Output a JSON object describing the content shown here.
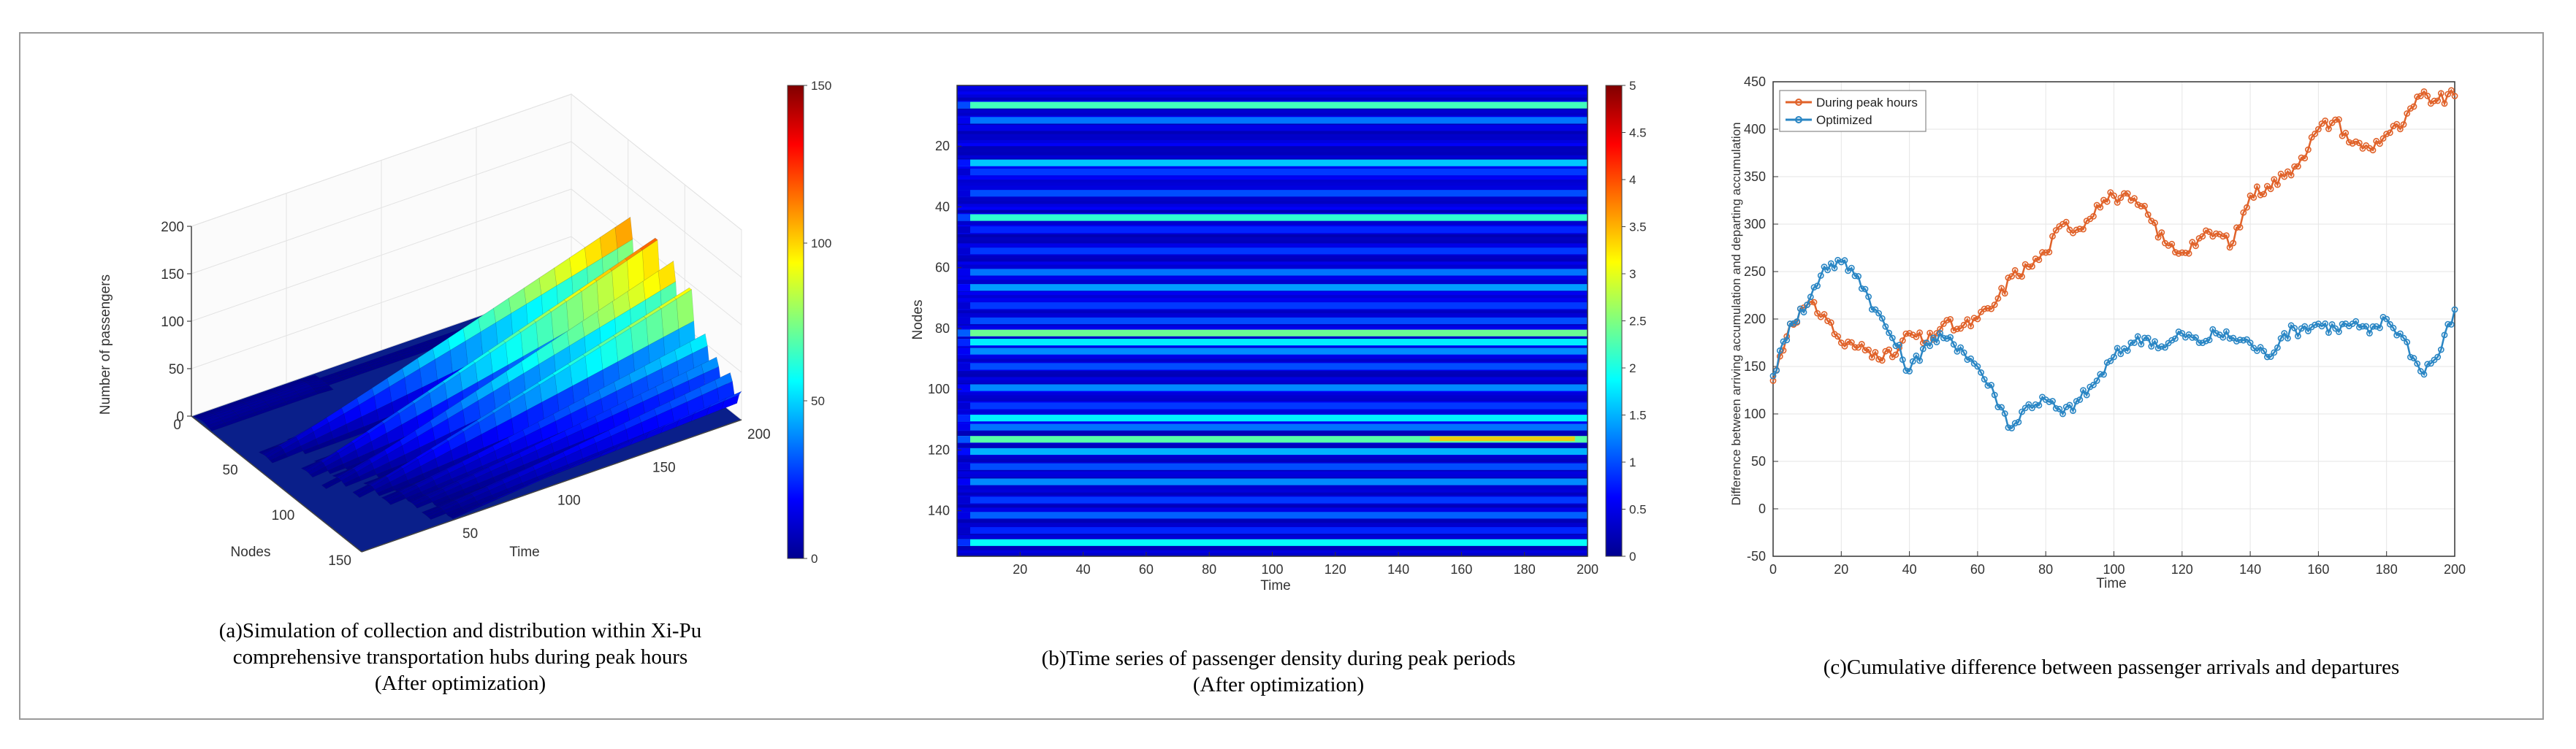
{
  "colors": {
    "peak": "#e0622a",
    "optimized": "#2a86c4",
    "axis": "#333333",
    "grid": "#e6e6e6"
  },
  "captions": {
    "a": [
      "(a)Simulation of collection and distribution within Xi-Pu",
      "comprehensive transportation hubs during peak hours",
      "(After optimization)"
    ],
    "b": [
      "(b)Time series of passenger density during peak periods",
      "(After optimization)"
    ],
    "c": [
      "(c)Cumulative difference between passenger arrivals and departures"
    ]
  },
  "chart_data": [
    {
      "id": "a",
      "type": "surface",
      "zlabel": "Number of passengers",
      "xlabel": "Nodes",
      "ylabel": "Time",
      "zticks": [
        "0",
        "50",
        "100",
        "150",
        "200"
      ],
      "xticks": [
        "0",
        "50",
        "100",
        "150"
      ],
      "yticks": [
        "50",
        "100",
        "150",
        "200"
      ],
      "xlim": [
        0,
        150
      ],
      "ylim": [
        0,
        200
      ],
      "zlim": [
        0,
        200
      ],
      "colorbar": {
        "range": [
          0,
          150
        ],
        "ticks": [
          "0",
          "50",
          "100",
          "150"
        ]
      },
      "ridges": [
        {
          "node": 52,
          "peak": 120
        },
        {
          "node": 75,
          "peak": 125
        },
        {
          "node": 90,
          "peak": 110
        },
        {
          "node": 105,
          "peak": 100
        },
        {
          "node": 118,
          "peak": 60
        },
        {
          "node": 128,
          "peak": 45
        },
        {
          "node": 140,
          "peak": 40
        },
        {
          "node": 150,
          "peak": 30
        }
      ]
    },
    {
      "id": "b",
      "type": "heatmap",
      "xlabel": "Time",
      "ylabel": "Nodes",
      "xticks": [
        "20",
        "40",
        "60",
        "80",
        "100",
        "120",
        "140",
        "160",
        "180",
        "200"
      ],
      "yticks": [
        "20",
        "40",
        "60",
        "80",
        "100",
        "120",
        "140"
      ],
      "xlim": [
        0,
        200
      ],
      "ylim": [
        0,
        155
      ],
      "colorbar": {
        "range": [
          0,
          5
        ],
        "ticks": [
          "0",
          "0.5",
          "1",
          "1.5",
          "2",
          "2.5",
          "3",
          "3.5",
          "4",
          "4.5",
          "5"
        ]
      },
      "bands": [
        {
          "node": 7,
          "level": 2.2
        },
        {
          "node": 12,
          "level": 1.2
        },
        {
          "node": 26,
          "level": 1.6
        },
        {
          "node": 29,
          "level": 0.9
        },
        {
          "node": 36,
          "level": 1.0
        },
        {
          "node": 44,
          "level": 2.1
        },
        {
          "node": 48,
          "level": 0.8
        },
        {
          "node": 55,
          "level": 0.9
        },
        {
          "node": 62,
          "level": 1.2
        },
        {
          "node": 67,
          "level": 1.4
        },
        {
          "node": 73,
          "level": 0.9
        },
        {
          "node": 78,
          "level": 1.0
        },
        {
          "node": 82,
          "level": 2.4
        },
        {
          "node": 85,
          "level": 1.8
        },
        {
          "node": 88,
          "level": 1.3
        },
        {
          "node": 93,
          "level": 1.0
        },
        {
          "node": 100,
          "level": 1.3
        },
        {
          "node": 106,
          "level": 0.9
        },
        {
          "node": 110,
          "level": 1.8
        },
        {
          "node": 113,
          "level": 1.2
        },
        {
          "node": 117,
          "level": 2.3
        },
        {
          "node": 121,
          "level": 1.5
        },
        {
          "node": 126,
          "level": 1.0
        },
        {
          "node": 131,
          "level": 1.3
        },
        {
          "node": 137,
          "level": 0.9
        },
        {
          "node": 142,
          "level": 1.1
        },
        {
          "node": 147,
          "level": 0.8
        },
        {
          "node": 151,
          "level": 1.9
        }
      ]
    },
    {
      "id": "c",
      "type": "line",
      "xlabel": "Time",
      "ylabel": "Difference between arriving accumulation and departing accumulation",
      "xlim": [
        0,
        200
      ],
      "ylim": [
        -50,
        450
      ],
      "xticks": [
        0,
        20,
        40,
        60,
        80,
        100,
        120,
        140,
        160,
        180,
        200
      ],
      "yticks": [
        -50,
        0,
        50,
        100,
        150,
        200,
        250,
        300,
        350,
        400,
        450
      ],
      "grid": true,
      "legend_position": "top-left",
      "series": [
        {
          "name": "During peak hours",
          "x": [
            0,
            5,
            10,
            15,
            20,
            25,
            30,
            35,
            40,
            45,
            50,
            55,
            60,
            65,
            70,
            75,
            80,
            85,
            90,
            95,
            100,
            105,
            110,
            115,
            120,
            125,
            130,
            135,
            140,
            145,
            150,
            155,
            160,
            165,
            170,
            175,
            180,
            185,
            190,
            195,
            200
          ],
          "y": [
            135,
            195,
            215,
            205,
            175,
            170,
            165,
            160,
            185,
            175,
            195,
            190,
            200,
            215,
            245,
            255,
            270,
            300,
            295,
            320,
            330,
            325,
            310,
            280,
            270,
            285,
            290,
            280,
            330,
            340,
            350,
            370,
            400,
            410,
            385,
            380,
            395,
            405,
            435,
            430,
            435
          ]
        },
        {
          "name": "Optimized",
          "x": [
            0,
            5,
            10,
            15,
            20,
            25,
            30,
            35,
            40,
            45,
            50,
            55,
            60,
            65,
            70,
            75,
            80,
            85,
            90,
            95,
            100,
            105,
            110,
            115,
            120,
            125,
            130,
            135,
            140,
            145,
            150,
            155,
            160,
            165,
            170,
            175,
            180,
            185,
            190,
            195,
            200
          ],
          "y": [
            140,
            195,
            215,
            255,
            260,
            245,
            210,
            180,
            145,
            175,
            180,
            170,
            150,
            120,
            85,
            110,
            115,
            100,
            115,
            135,
            160,
            175,
            180,
            170,
            185,
            175,
            185,
            180,
            175,
            160,
            185,
            190,
            195,
            190,
            195,
            185,
            200,
            180,
            145,
            160,
            210
          ]
        }
      ]
    }
  ]
}
